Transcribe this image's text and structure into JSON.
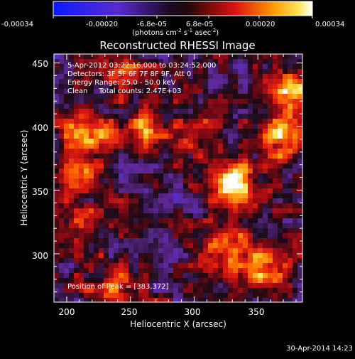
{
  "colorbar": {
    "tick_labels": [
      "-0.00034",
      "-0.00020",
      "-6.8e-05",
      "6.8e-05",
      "0.00020",
      "0.00034"
    ],
    "tick_values": [
      -0.00034,
      -0.0002,
      -6.8e-05,
      6.8e-05,
      0.0002,
      0.00034
    ],
    "range": [
      -0.00034,
      0.00034
    ],
    "unit_prefix": "(photons cm",
    "unit_exp1": "-2",
    "unit_mid": " s",
    "unit_exp2": "-1",
    "unit_mid2": " asec",
    "unit_exp3": "-2",
    "unit_suffix": ")"
  },
  "chart_data": {
    "type": "heatmap",
    "title": "Reconstructed RHESSI Image",
    "xlabel": "Heliocentric X (arcsec)",
    "ylabel": "Heliocentric Y (arcsec)",
    "xlim": [
      190,
      385
    ],
    "ylim": [
      262,
      457
    ],
    "xticks": [
      200,
      250,
      300,
      350
    ],
    "yticks": [
      300,
      350,
      400,
      450
    ],
    "info_lines": [
      "5-Apr-2012 03:22:16.000 to 03:24:52.000",
      "Detectors: 3F 5F 6F 7F 8F 9F, Att 0",
      "Energy Range: 25.0 - 50.0 keV",
      "Clean     Total counts: 2.47E+03"
    ],
    "peak_label": "Position of Peak = [383,372]",
    "peak": [
      383,
      372
    ],
    "grid": false,
    "colormap": "blue-purple-red-yellow-white",
    "bright_sources": [
      {
        "x": 330,
        "y": 355,
        "value": 0.00034
      },
      {
        "x": 372,
        "y": 392,
        "value": 0.00028
      },
      {
        "x": 378,
        "y": 425,
        "value": 0.00026
      },
      {
        "x": 203,
        "y": 360,
        "value": 0.00022
      },
      {
        "x": 215,
        "y": 397,
        "value": 0.00024
      },
      {
        "x": 262,
        "y": 395,
        "value": 0.00018
      },
      {
        "x": 325,
        "y": 303,
        "value": 0.00024
      },
      {
        "x": 355,
        "y": 290,
        "value": 0.00022
      },
      {
        "x": 235,
        "y": 270,
        "value": 0.0002
      },
      {
        "x": 300,
        "y": 390,
        "value": 0.00014
      },
      {
        "x": 245,
        "y": 440,
        "value": 0.00012
      },
      {
        "x": 215,
        "y": 320,
        "value": 0.00012
      }
    ]
  },
  "footer": {
    "date": "30-Apr-2014 14:23"
  }
}
